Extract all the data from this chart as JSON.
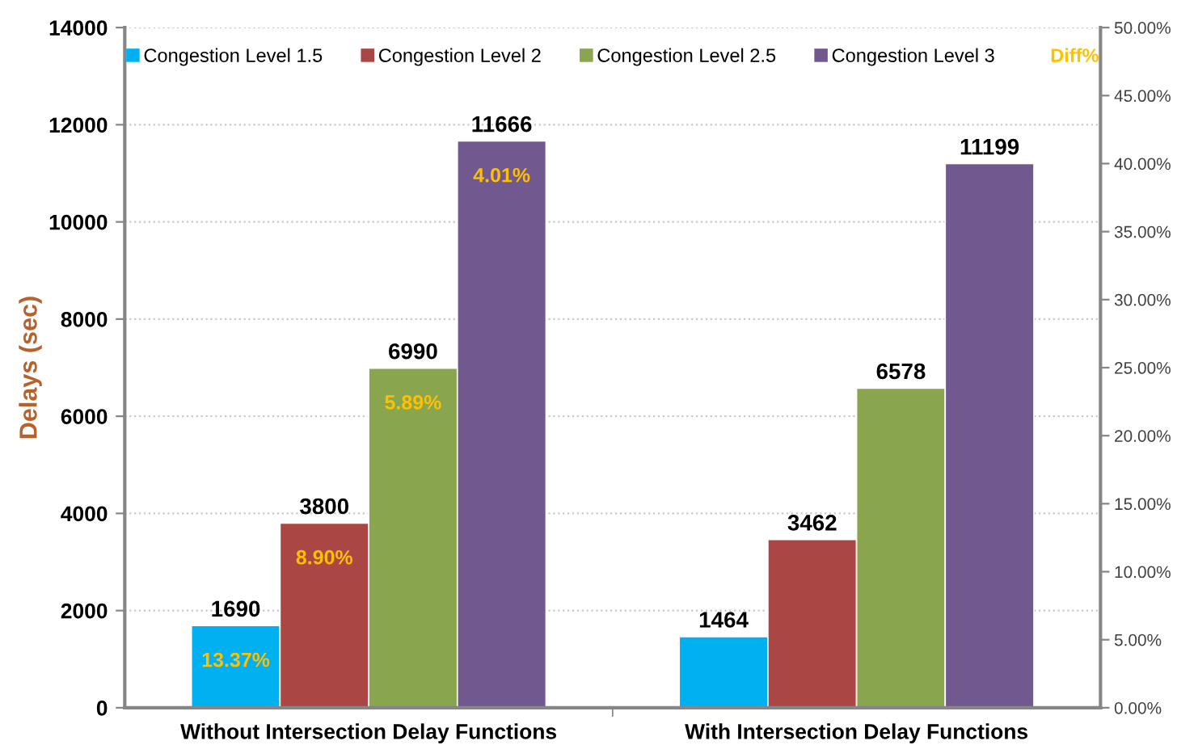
{
  "chart_data": {
    "type": "bar",
    "ylabel": "Delays (sec)",
    "categories": [
      "Without Intersection Delay Functions",
      "With Intersection Delay Functions"
    ],
    "series": [
      {
        "name": "Congestion Level 1.5",
        "color": "#00b0f0",
        "values": [
          1690,
          1464
        ]
      },
      {
        "name": "Congestion Level 2",
        "color": "#aa4643",
        "values": [
          3800,
          3462
        ]
      },
      {
        "name": "Congestion Level 2.5",
        "color": "#89a54e",
        "values": [
          6990,
          6578
        ]
      },
      {
        "name": "Congestion Level 3",
        "color": "#71588f",
        "values": [
          11666,
          11199
        ]
      },
      {
        "name": "Diff%",
        "type": "line",
        "axis": "y2",
        "color": "#ffc000",
        "values": [
          null,
          null
        ],
        "marker": "none",
        "line_style": "none"
      }
    ],
    "ylim": [
      0,
      14000
    ],
    "yticks": [
      0,
      2000,
      4000,
      6000,
      8000,
      10000,
      12000,
      14000
    ],
    "y2lim": [
      0,
      50
    ],
    "y2ticks": [
      {
        "value": 0,
        "label": "0.00%"
      },
      {
        "value": 5,
        "label": "5.00%"
      },
      {
        "value": 10,
        "label": "10.00%"
      },
      {
        "value": 15,
        "label": "15.00%"
      },
      {
        "value": 20,
        "label": "20.00%"
      },
      {
        "value": 25,
        "label": "25.00%"
      },
      {
        "value": 30,
        "label": "30.00%"
      },
      {
        "value": 35,
        "label": "35.00%"
      },
      {
        "value": 40,
        "label": "40.00%"
      },
      {
        "value": 45,
        "label": "45.00%"
      },
      {
        "value": 50,
        "label": "50.00%"
      }
    ],
    "annotations": [
      "13.37%",
      "8.90%",
      "5.89%",
      "4.01%"
    ],
    "data_labels": true,
    "grid": "y",
    "legend": "top"
  }
}
